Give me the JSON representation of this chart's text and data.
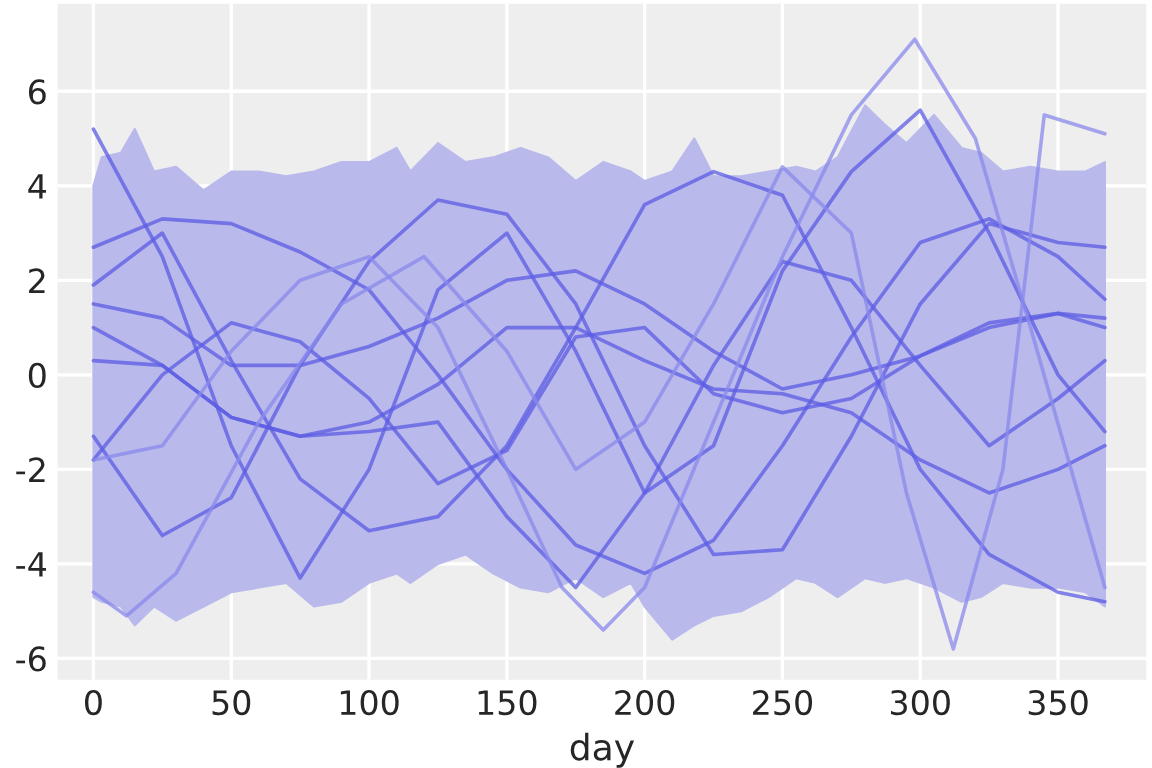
{
  "chart_data": {
    "type": "line",
    "xlabel": "day",
    "xlim": [
      -13,
      382
    ],
    "ylim": [
      -6.45,
      7.85
    ],
    "xticks": [
      0,
      50,
      100,
      150,
      200,
      250,
      300,
      350
    ],
    "yticks": [
      -6,
      -4,
      -2,
      0,
      2,
      4,
      6
    ],
    "grid": true,
    "line_style": "solid",
    "series": [
      {
        "type": "area",
        "color": "#b9b9ec",
        "x": [
          0,
          3,
          10,
          15,
          22,
          30,
          40,
          50,
          60,
          70,
          80,
          90,
          100,
          110,
          115,
          125,
          135,
          145,
          155,
          165,
          175,
          185,
          195,
          200,
          210,
          218,
          225,
          235,
          245,
          255,
          262,
          270,
          280,
          287,
          295,
          305,
          315,
          322,
          330,
          340,
          350,
          360,
          367
        ],
        "values": [
          -4.7,
          -4.8,
          -4.9,
          -5.3,
          -4.9,
          -5.2,
          -4.9,
          -4.6,
          -4.5,
          -4.4,
          -4.9,
          -4.8,
          -4.4,
          -4.2,
          -4.4,
          -4.0,
          -3.8,
          -4.2,
          -4.5,
          -4.6,
          -4.3,
          -4.7,
          -4.4,
          -4.9,
          -5.6,
          -5.3,
          -5.1,
          -5.0,
          -4.7,
          -4.3,
          -4.4,
          -4.7,
          -4.3,
          -4.4,
          -4.3,
          -4.5,
          -4.8,
          -4.7,
          -4.4,
          -4.5,
          -4.5,
          -4.6,
          -4.9
        ]
      },
      {
        "type": "area",
        "color": "#b9b9ec",
        "x": [
          0,
          3,
          10,
          15,
          22,
          30,
          40,
          50,
          60,
          70,
          80,
          90,
          100,
          110,
          115,
          125,
          135,
          145,
          155,
          165,
          175,
          185,
          195,
          200,
          210,
          218,
          225,
          235,
          245,
          255,
          262,
          270,
          280,
          287,
          295,
          305,
          315,
          322,
          330,
          340,
          350,
          360,
          367
        ],
        "values": [
          4.0,
          4.6,
          4.7,
          5.2,
          4.3,
          4.4,
          3.9,
          4.3,
          4.3,
          4.2,
          4.3,
          4.5,
          4.5,
          4.8,
          4.3,
          4.9,
          4.5,
          4.6,
          4.8,
          4.6,
          4.1,
          4.5,
          4.3,
          4.1,
          4.3,
          5.0,
          4.2,
          4.2,
          4.3,
          4.4,
          4.3,
          4.6,
          5.7,
          5.3,
          4.9,
          5.5,
          4.8,
          4.7,
          4.3,
          4.4,
          4.3,
          4.3,
          4.5
        ]
      },
      {
        "color": "#5c5ce4",
        "x": [
          0,
          25,
          50,
          75,
          100,
          125,
          150,
          175,
          200,
          225,
          250,
          275,
          300,
          325,
          350,
          367
        ],
        "values": [
          5.2,
          2.5,
          -1.5,
          -4.3,
          -2.0,
          1.8,
          3.0,
          0.5,
          -2.5,
          -1.5,
          2.2,
          4.3,
          5.6,
          3.0,
          0.0,
          -1.2
        ]
      },
      {
        "color": "#5c5ce4",
        "x": [
          0,
          25,
          50,
          75,
          100,
          125,
          150,
          175,
          200,
          225,
          250,
          275,
          300,
          325,
          350,
          367
        ],
        "values": [
          2.7,
          3.3,
          3.2,
          2.6,
          1.8,
          0.0,
          -2.0,
          -3.6,
          -4.2,
          -3.5,
          -1.5,
          0.8,
          2.8,
          3.3,
          2.5,
          1.6
        ]
      },
      {
        "color": "#5c5ce4",
        "x": [
          0,
          25,
          50,
          75,
          100,
          125,
          150,
          175,
          200,
          225,
          250,
          275,
          300,
          325,
          350,
          367
        ],
        "values": [
          1.9,
          3.0,
          0.3,
          -2.2,
          -3.3,
          -3.0,
          -1.5,
          1.0,
          3.6,
          4.3,
          3.8,
          1.0,
          -2.0,
          -3.8,
          -4.6,
          -4.8
        ]
      },
      {
        "color": "#5c5ce4",
        "x": [
          0,
          25,
          50,
          75,
          100,
          125,
          150,
          175,
          200,
          225,
          250,
          275,
          300,
          325,
          350,
          367
        ],
        "values": [
          1.5,
          1.2,
          0.2,
          0.2,
          0.6,
          1.2,
          2.0,
          2.2,
          1.5,
          0.5,
          -0.3,
          0.0,
          0.4,
          1.0,
          1.3,
          1.0
        ]
      },
      {
        "color": "#5c5ce4",
        "x": [
          0,
          25,
          50,
          75,
          100,
          125,
          150,
          175,
          200,
          225,
          250,
          275,
          300,
          325,
          350,
          367
        ],
        "values": [
          1.0,
          0.2,
          -0.9,
          -1.3,
          -1.0,
          -0.2,
          1.0,
          1.0,
          0.3,
          -0.3,
          -0.4,
          -0.8,
          -1.8,
          -2.5,
          -2.0,
          -1.5
        ]
      },
      {
        "color": "#5c5ce4",
        "x": [
          0,
          25,
          50,
          75,
          100,
          125,
          150,
          175,
          200,
          225,
          250,
          275,
          300,
          325,
          350,
          367
        ],
        "values": [
          0.3,
          0.2,
          -0.9,
          -1.3,
          -1.2,
          -1.0,
          -3.0,
          -4.5,
          -2.5,
          0.2,
          2.4,
          2.0,
          0.2,
          -1.5,
          -0.5,
          0.3
        ]
      },
      {
        "color": "#5c5ce4",
        "x": [
          0,
          25,
          50,
          75,
          100,
          125,
          150,
          175,
          200,
          225,
          250,
          275,
          300,
          325,
          350,
          367
        ],
        "values": [
          -1.3,
          -3.4,
          -2.6,
          0.2,
          2.4,
          3.7,
          3.4,
          1.5,
          -1.5,
          -3.8,
          -3.7,
          -1.3,
          1.5,
          3.2,
          2.8,
          2.7
        ]
      },
      {
        "color": "#5c5ce4",
        "x": [
          0,
          25,
          50,
          75,
          100,
          125,
          150,
          175,
          200,
          225,
          250,
          275,
          300,
          325,
          350,
          367
        ],
        "values": [
          -1.8,
          0.0,
          1.1,
          0.7,
          -0.5,
          -2.3,
          -1.6,
          0.8,
          1.0,
          -0.4,
          -0.8,
          -0.5,
          0.4,
          1.1,
          1.3,
          1.2
        ]
      },
      {
        "color": "#8a8aec",
        "x": [
          0,
          25,
          50,
          75,
          100,
          125,
          150,
          170,
          185,
          200,
          225,
          250,
          275,
          298,
          320,
          340,
          367
        ],
        "values": [
          -1.8,
          -1.5,
          0.5,
          2.0,
          2.5,
          1.0,
          -2.0,
          -4.5,
          -5.4,
          -4.5,
          -1.0,
          2.5,
          5.5,
          7.1,
          5.0,
          1.0,
          -4.5
        ]
      },
      {
        "color": "#8a8aec",
        "x": [
          0,
          12,
          30,
          60,
          90,
          120,
          150,
          175,
          200,
          225,
          250,
          275,
          295,
          312,
          330,
          345,
          367
        ],
        "values": [
          -4.6,
          -5.1,
          -4.2,
          -1.0,
          1.5,
          2.5,
          0.5,
          -2.0,
          -1.0,
          1.5,
          4.4,
          3.0,
          -2.5,
          -5.8,
          -2.0,
          5.5,
          5.1
        ]
      }
    ]
  }
}
